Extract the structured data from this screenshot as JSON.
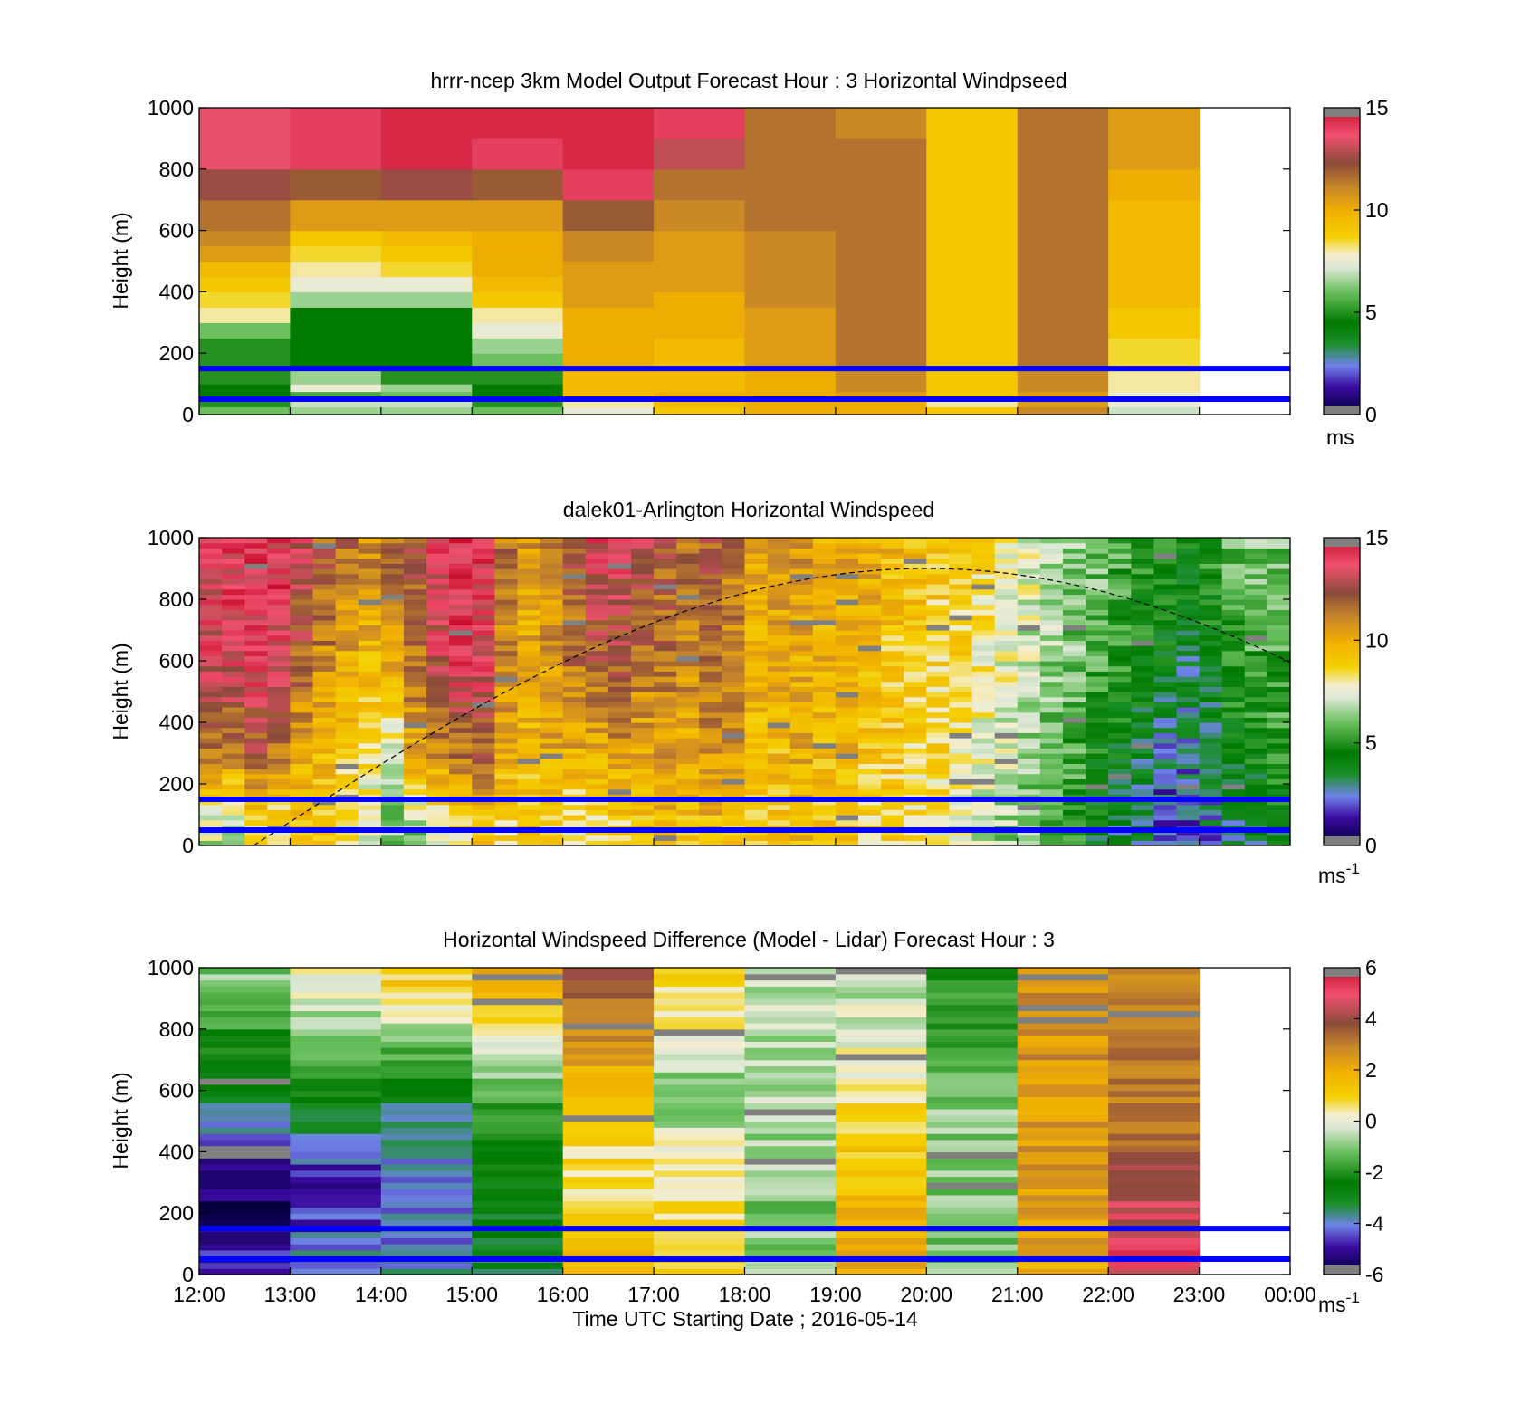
{
  "figure": {
    "shared_x": {
      "ticks": [
        "12:00",
        "13:00",
        "14:00",
        "15:00",
        "16:00",
        "17:00",
        "18:00",
        "19:00",
        "20:00",
        "21:00",
        "22:00",
        "23:00",
        "00:00"
      ],
      "label": "Time UTC  Starting Date ; 2016-05-14"
    },
    "reference_lines": {
      "color": "#0000ff",
      "heights_m": [
        150,
        50
      ]
    }
  },
  "chart_data": [
    {
      "type": "heatmap",
      "title": "hrrr-ncep 3km Model Output   Forecast Hour : 3 Horizontal Windpseed",
      "ylabel": "Height (m)",
      "xlabel": "",
      "ylim": [
        0,
        1000
      ],
      "yticks": [
        "0",
        "200",
        "400",
        "600",
        "800",
        "1000"
      ],
      "x": [
        "12:00",
        "13:00",
        "14:00",
        "15:00",
        "16:00",
        "17:00",
        "18:00",
        "19:00",
        "20:00",
        "21:00",
        "22:00"
      ],
      "height_bins_m": [
        0,
        25,
        50,
        75,
        100,
        150,
        200,
        250,
        300,
        350,
        400,
        450,
        500,
        550,
        600,
        700,
        800,
        900,
        1000
      ],
      "values": [
        [
          6,
          6.5,
          6.5,
          6,
          7.5,
          9,
          10,
          10,
          9,
          11,
          7
        ],
        [
          5,
          7,
          7,
          5,
          8,
          9.5,
          10,
          10,
          8,
          10.5,
          7.5
        ],
        [
          4.5,
          5.5,
          6,
          4.5,
          9.5,
          10,
          10,
          10.5,
          9,
          10.5,
          7.5
        ],
        [
          4.5,
          7.5,
          6.5,
          4.5,
          9.5,
          9.5,
          10,
          11,
          9,
          11,
          8
        ],
        [
          5,
          6.5,
          5,
          5,
          9.5,
          9.5,
          10,
          11,
          9,
          11,
          8
        ],
        [
          5,
          4.5,
          4.5,
          6,
          10,
          9.5,
          10.5,
          11.5,
          9,
          11.5,
          8.5
        ],
        [
          5,
          4.5,
          4.5,
          6.5,
          10,
          9.5,
          10.5,
          11.5,
          9,
          11.5,
          8.5
        ],
        [
          6,
          4.5,
          4.5,
          7.5,
          10,
          10,
          10.5,
          11.5,
          9,
          11.5,
          9
        ],
        [
          8,
          4.5,
          4.5,
          8,
          10,
          10,
          10.5,
          11.5,
          9,
          11.5,
          9
        ],
        [
          8.5,
          6.5,
          6.5,
          9,
          10.5,
          10,
          11,
          11.5,
          9,
          11.5,
          9.5
        ],
        [
          9,
          7.5,
          7.5,
          9.5,
          10.5,
          10.5,
          11,
          11.5,
          9,
          11.5,
          9.5
        ],
        [
          9.5,
          8,
          8.5,
          10,
          10.5,
          10.5,
          11,
          11.5,
          9,
          11.5,
          9.5
        ],
        [
          10.5,
          8.5,
          9,
          10,
          11,
          10.5,
          11,
          11.5,
          9,
          11.5,
          9.5
        ],
        [
          11,
          9,
          9.5,
          10,
          11,
          10.5,
          11,
          11.5,
          9,
          11.5,
          9.5
        ],
        [
          11.5,
          10.5,
          10.5,
          10.5,
          12,
          11,
          11.5,
          11.5,
          9,
          11.5,
          9.5
        ],
        [
          12.5,
          12,
          12.5,
          12,
          14,
          11.5,
          11.5,
          11.5,
          9,
          11.5,
          10
        ],
        [
          13.5,
          14,
          14.5,
          14,
          14.5,
          13,
          11.5,
          11.5,
          9,
          11.5,
          10.5
        ],
        [
          13.5,
          14,
          14.5,
          14.5,
          14.5,
          14,
          11.5,
          11,
          9,
          11.5,
          10.5
        ]
      ],
      "colorbar": {
        "ticks": [
          "0",
          "5",
          "10",
          "15"
        ],
        "unit_label": "ms",
        "range": [
          0,
          15
        ]
      }
    },
    {
      "type": "heatmap",
      "title": "dalek01-Arlington  Horizontal Windspeed",
      "ylabel": "Height (m)",
      "xlabel": "",
      "ylim": [
        0,
        1000
      ],
      "yticks": [
        "0",
        "200",
        "400",
        "600",
        "800",
        "1000"
      ],
      "x_range": [
        "12:00",
        "00:00"
      ],
      "column_count": 48,
      "column_profiles_ms": [
        [
          7,
          11,
          13.5,
          13.5
        ],
        [
          7,
          11,
          13.5,
          14
        ],
        [
          8,
          12,
          14,
          14
        ],
        [
          8,
          11,
          13.5,
          14
        ],
        [
          9,
          10,
          12,
          13
        ],
        [
          9,
          9.5,
          11,
          12
        ],
        [
          8,
          9,
          10,
          11.5
        ],
        [
          7,
          8.5,
          9.5,
          11
        ],
        [
          6,
          7.5,
          10,
          11.5
        ],
        [
          6.5,
          10,
          11.5,
          12
        ],
        [
          7,
          11,
          13,
          13.5
        ],
        [
          8,
          11.5,
          14,
          14.5
        ],
        [
          9,
          12,
          13.5,
          14
        ],
        [
          8.5,
          10,
          11,
          11.5
        ],
        [
          9,
          9.5,
          10,
          10.5
        ],
        [
          9,
          10,
          10.5,
          11
        ],
        [
          8,
          10,
          11.5,
          12
        ],
        [
          8,
          10,
          12,
          13.5
        ],
        [
          8.5,
          10.5,
          12,
          13.5
        ],
        [
          9,
          10,
          11.5,
          13
        ],
        [
          9.5,
          10.5,
          11.5,
          12
        ],
        [
          9,
          10,
          11,
          11.5
        ],
        [
          9.5,
          10.5,
          11.5,
          12
        ],
        [
          9,
          10.5,
          11,
          11.5
        ],
        [
          9,
          9.5,
          10,
          10
        ],
        [
          9,
          9.5,
          10,
          10.5
        ],
        [
          9.5,
          10,
          10,
          10.5
        ],
        [
          9,
          9.5,
          10,
          10
        ],
        [
          9,
          9.5,
          9.5,
          10
        ],
        [
          8.5,
          9,
          9.5,
          10
        ],
        [
          8.5,
          9,
          9,
          9.5
        ],
        [
          8,
          8.5,
          9,
          9.5
        ],
        [
          8,
          8.5,
          8.5,
          9
        ],
        [
          7.5,
          8,
          8.5,
          9
        ],
        [
          7,
          7.5,
          8,
          8.5
        ],
        [
          6.5,
          7,
          7.5,
          8
        ],
        [
          6,
          6.5,
          7,
          7.5
        ],
        [
          5.5,
          6,
          6.5,
          7
        ],
        [
          5,
          5.5,
          6,
          6.5
        ],
        [
          4,
          4.5,
          5.5,
          6
        ],
        [
          3.5,
          4,
          5,
          5.5
        ],
        [
          3,
          3.5,
          4.5,
          5
        ],
        [
          2,
          2.5,
          4,
          5
        ],
        [
          2,
          2.5,
          3.5,
          4.5
        ],
        [
          2.5,
          3,
          4,
          5
        ],
        [
          3,
          4,
          5,
          6
        ],
        [
          3.5,
          4.5,
          5.5,
          6
        ],
        [
          4,
          5,
          5.5,
          6
        ]
      ],
      "profile_heights_m": [
        50,
        300,
        600,
        950
      ],
      "missing_data_color": "#808080",
      "curve": {
        "style": "dashed",
        "peak_time": "20:00",
        "peak_height_m": 900
      },
      "colorbar": {
        "ticks": [
          "0",
          "5",
          "10",
          "15"
        ],
        "unit_label": "ms",
        "unit_sup": "-1",
        "range": [
          0,
          15
        ]
      }
    },
    {
      "type": "heatmap",
      "title": "Horizontal Windspeed Difference (Model - Lidar) Forecast Hour : 3",
      "ylabel": "Height (m)",
      "xlabel": "Time UTC  Starting Date ; 2016-05-14",
      "ylim": [
        0,
        1000
      ],
      "yticks": [
        "0",
        "200",
        "400",
        "600",
        "800",
        "1000"
      ],
      "x": [
        "12:00",
        "13:00",
        "14:00",
        "15:00",
        "16:00",
        "17:00",
        "18:00",
        "19:00",
        "20:00",
        "21:00",
        "22:00"
      ],
      "column_profiles_ms": [
        [
          -5,
          -5.5,
          -3,
          -1
        ],
        [
          -4,
          -5,
          -2.5,
          0
        ],
        [
          -4,
          -4.5,
          -3,
          1
        ],
        [
          -3,
          -2.5,
          -1.5,
          2
        ],
        [
          2,
          0.5,
          1.5,
          3.5
        ],
        [
          1,
          0.5,
          -1,
          1
        ],
        [
          -1,
          -1,
          -0.5,
          -0.5
        ],
        [
          2,
          1.5,
          0.5,
          -0.5
        ],
        [
          -1,
          -1,
          -1,
          -2
        ],
        [
          2,
          2.5,
          2.5,
          2.5
        ],
        [
          5,
          4,
          3,
          3
        ]
      ],
      "profile_heights_m": [
        50,
        300,
        600,
        950
      ],
      "missing_data_color": "#808080",
      "colorbar": {
        "ticks": [
          "-6",
          "-4",
          "-2",
          "0",
          "2",
          "4",
          "6"
        ],
        "unit_label": "ms",
        "unit_sup": "-1",
        "range": [
          -6,
          6
        ]
      }
    }
  ]
}
